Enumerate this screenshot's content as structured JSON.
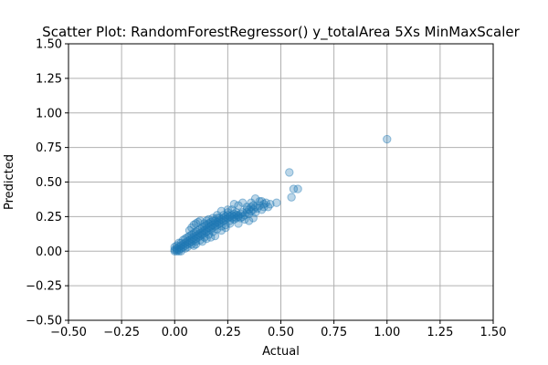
{
  "chart_data": {
    "type": "scatter",
    "title": "Scatter Plot: RandomForestRegressor() y_totalArea 5Xs MinMaxScaler",
    "xlabel": "Actual",
    "ylabel": "Predicted",
    "xlim": [
      -0.5,
      1.5
    ],
    "ylim": [
      -0.5,
      1.5
    ],
    "xticks": [
      -0.5,
      -0.25,
      0.0,
      0.25,
      0.5,
      0.75,
      1.0,
      1.25,
      1.5
    ],
    "yticks": [
      -0.5,
      -0.25,
      0.0,
      0.25,
      0.5,
      0.75,
      1.0,
      1.25,
      1.5
    ],
    "xtick_labels": [
      "−0.50",
      "−0.25",
      "0.00",
      "0.25",
      "0.50",
      "0.75",
      "1.00",
      "1.25",
      "1.50"
    ],
    "ytick_labels": [
      "−0.50",
      "−0.25",
      "0.00",
      "0.25",
      "0.50",
      "0.75",
      "1.00",
      "1.25",
      "1.50"
    ],
    "grid": true,
    "legend": "none",
    "marker_color": "#1f77b4",
    "marker_alpha": 0.3,
    "series": [
      {
        "points": [
          [
            0.0,
            0.01
          ],
          [
            0.0,
            0.0
          ],
          [
            0.01,
            0.02
          ],
          [
            0.01,
            0.0
          ],
          [
            0.0,
            0.03
          ],
          [
            0.01,
            0.01
          ],
          [
            0.02,
            0.01
          ],
          [
            0.02,
            0.03
          ],
          [
            0.03,
            0.02
          ],
          [
            0.03,
            0.04
          ],
          [
            0.01,
            0.04
          ],
          [
            0.02,
            0.0
          ],
          [
            0.04,
            0.03
          ],
          [
            0.04,
            0.05
          ],
          [
            0.05,
            0.04
          ],
          [
            0.05,
            0.06
          ],
          [
            0.03,
            0.06
          ],
          [
            0.06,
            0.05
          ],
          [
            0.06,
            0.07
          ],
          [
            0.04,
            0.08
          ],
          [
            0.05,
            0.02
          ],
          [
            0.07,
            0.06
          ],
          [
            0.07,
            0.08
          ],
          [
            0.08,
            0.07
          ],
          [
            0.08,
            0.09
          ],
          [
            0.06,
            0.1
          ],
          [
            0.09,
            0.08
          ],
          [
            0.09,
            0.1
          ],
          [
            0.1,
            0.09
          ],
          [
            0.1,
            0.11
          ],
          [
            0.08,
            0.12
          ],
          [
            0.11,
            0.1
          ],
          [
            0.11,
            0.12
          ],
          [
            0.12,
            0.11
          ],
          [
            0.12,
            0.13
          ],
          [
            0.1,
            0.14
          ],
          [
            0.13,
            0.12
          ],
          [
            0.13,
            0.14
          ],
          [
            0.14,
            0.13
          ],
          [
            0.14,
            0.15
          ],
          [
            0.12,
            0.16
          ],
          [
            0.15,
            0.14
          ],
          [
            0.15,
            0.16
          ],
          [
            0.16,
            0.15
          ],
          [
            0.16,
            0.17
          ],
          [
            0.14,
            0.18
          ],
          [
            0.17,
            0.16
          ],
          [
            0.17,
            0.18
          ],
          [
            0.18,
            0.17
          ],
          [
            0.18,
            0.19
          ],
          [
            0.16,
            0.2
          ],
          [
            0.19,
            0.18
          ],
          [
            0.19,
            0.2
          ],
          [
            0.2,
            0.19
          ],
          [
            0.2,
            0.21
          ],
          [
            0.18,
            0.22
          ],
          [
            0.21,
            0.2
          ],
          [
            0.21,
            0.22
          ],
          [
            0.22,
            0.21
          ],
          [
            0.22,
            0.23
          ],
          [
            0.2,
            0.24
          ],
          [
            0.23,
            0.22
          ],
          [
            0.23,
            0.24
          ],
          [
            0.24,
            0.23
          ],
          [
            0.24,
            0.25
          ],
          [
            0.25,
            0.24
          ],
          [
            0.25,
            0.26
          ],
          [
            0.26,
            0.25
          ],
          [
            0.27,
            0.26
          ],
          [
            0.28,
            0.27
          ],
          [
            0.29,
            0.28
          ],
          [
            0.3,
            0.26
          ],
          [
            0.02,
            0.06
          ],
          [
            0.03,
            0.0
          ],
          [
            0.05,
            0.09
          ],
          [
            0.06,
            0.03
          ],
          [
            0.07,
            0.11
          ],
          [
            0.08,
            0.05
          ],
          [
            0.09,
            0.13
          ],
          [
            0.1,
            0.07
          ],
          [
            0.11,
            0.15
          ],
          [
            0.12,
            0.08
          ],
          [
            0.13,
            0.17
          ],
          [
            0.14,
            0.1
          ],
          [
            0.15,
            0.19
          ],
          [
            0.16,
            0.12
          ],
          [
            0.17,
            0.21
          ],
          [
            0.18,
            0.14
          ],
          [
            0.19,
            0.22
          ],
          [
            0.2,
            0.16
          ],
          [
            0.21,
            0.24
          ],
          [
            0.22,
            0.18
          ],
          [
            0.23,
            0.26
          ],
          [
            0.24,
            0.19
          ],
          [
            0.25,
            0.28
          ],
          [
            0.26,
            0.2
          ],
          [
            0.07,
            0.15
          ],
          [
            0.08,
            0.17
          ],
          [
            0.09,
            0.19
          ],
          [
            0.1,
            0.2
          ],
          [
            0.11,
            0.21
          ],
          [
            0.12,
            0.22
          ],
          [
            0.09,
            0.04
          ],
          [
            0.1,
            0.05
          ],
          [
            0.13,
            0.07
          ],
          [
            0.15,
            0.09
          ],
          [
            0.17,
            0.1
          ],
          [
            0.19,
            0.11
          ],
          [
            0.22,
            0.15
          ],
          [
            0.24,
            0.17
          ],
          [
            0.26,
            0.22
          ],
          [
            0.27,
            0.24
          ],
          [
            0.28,
            0.23
          ],
          [
            0.28,
            0.25
          ],
          [
            0.29,
            0.26
          ],
          [
            0.29,
            0.24
          ],
          [
            0.3,
            0.25
          ],
          [
            0.31,
            0.27
          ],
          [
            0.31,
            0.24
          ],
          [
            0.32,
            0.25
          ],
          [
            0.32,
            0.28
          ],
          [
            0.33,
            0.26
          ],
          [
            0.34,
            0.28
          ],
          [
            0.35,
            0.27
          ],
          [
            0.35,
            0.3
          ],
          [
            0.36,
            0.29
          ],
          [
            0.37,
            0.3
          ],
          [
            0.38,
            0.32
          ],
          [
            0.38,
            0.28
          ],
          [
            0.39,
            0.31
          ],
          [
            0.4,
            0.33
          ],
          [
            0.41,
            0.3
          ],
          [
            0.42,
            0.32
          ],
          [
            0.43,
            0.35
          ],
          [
            0.44,
            0.32
          ],
          [
            0.45,
            0.34
          ],
          [
            0.36,
            0.35
          ],
          [
            0.38,
            0.38
          ],
          [
            0.4,
            0.36
          ],
          [
            0.42,
            0.34
          ],
          [
            0.3,
            0.33
          ],
          [
            0.32,
            0.35
          ],
          [
            0.34,
            0.32
          ],
          [
            0.28,
            0.34
          ],
          [
            0.33,
            0.23
          ],
          [
            0.35,
            0.22
          ],
          [
            0.37,
            0.24
          ],
          [
            0.3,
            0.2
          ],
          [
            0.34,
            0.3
          ],
          [
            0.36,
            0.32
          ],
          [
            0.41,
            0.36
          ],
          [
            0.37,
            0.33
          ],
          [
            0.15,
            0.22
          ],
          [
            0.18,
            0.24
          ],
          [
            0.2,
            0.26
          ],
          [
            0.22,
            0.29
          ],
          [
            0.25,
            0.3
          ],
          [
            0.27,
            0.3
          ],
          [
            0.14,
            0.2
          ],
          [
            0.16,
            0.23
          ],
          [
            0.48,
            0.35
          ],
          [
            0.54,
            0.57
          ],
          [
            0.55,
            0.39
          ],
          [
            0.56,
            0.45
          ],
          [
            0.58,
            0.45
          ],
          [
            1.0,
            0.81
          ]
        ]
      }
    ]
  }
}
